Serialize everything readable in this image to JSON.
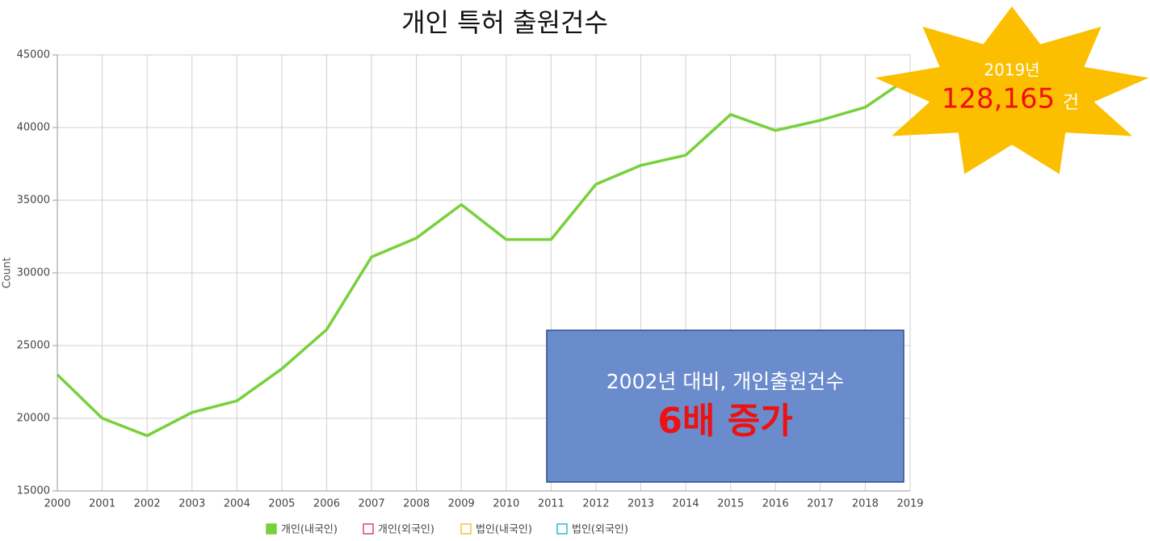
{
  "chart_data": {
    "type": "line",
    "title": "개인 특허 출원건수",
    "y_label": "Count",
    "categories": [
      "2000",
      "2001",
      "2002",
      "2003",
      "2004",
      "2005",
      "2006",
      "2007",
      "2008",
      "2009",
      "2010",
      "2011",
      "2012",
      "2013",
      "2014",
      "2015",
      "2016",
      "2017",
      "2018",
      "2019"
    ],
    "series": [
      {
        "name": "개인(내국인)",
        "color": "#77d13a",
        "values": [
          23000,
          20000,
          18800,
          20400,
          21200,
          23400,
          26100,
          31100,
          32400,
          34700,
          32300,
          32300,
          36100,
          37400,
          38100,
          40900,
          39800,
          40500,
          41400,
          43500
        ]
      },
      {
        "name": "개인(외국인)",
        "color": "#e0407a",
        "values": [
          null,
          null,
          null,
          null,
          null,
          null,
          null,
          null,
          null,
          null,
          null,
          null,
          null,
          null,
          null,
          null,
          null,
          null,
          null,
          null
        ]
      },
      {
        "name": "법인(내국인)",
        "color": "#f5c040",
        "values": [
          null,
          null,
          null,
          null,
          null,
          null,
          null,
          null,
          null,
          null,
          null,
          null,
          null,
          null,
          null,
          null,
          null,
          null,
          null,
          null
        ]
      },
      {
        "name": "법인(외국인)",
        "color": "#30b8d0",
        "values": [
          null,
          null,
          null,
          null,
          null,
          null,
          null,
          null,
          null,
          null,
          null,
          null,
          null,
          null,
          null,
          null,
          null,
          null,
          null,
          null
        ]
      }
    ],
    "ylim": [
      15000,
      45000
    ],
    "yticks": [
      15000,
      20000,
      25000,
      30000,
      35000,
      40000,
      45000
    ],
    "grid": true,
    "star_annotation": {
      "year": "2019년",
      "value": "128,165",
      "unit": "건"
    },
    "callout": {
      "line1": "2002년 대비, 개인출원건수",
      "line2": "6배 증가"
    }
  }
}
